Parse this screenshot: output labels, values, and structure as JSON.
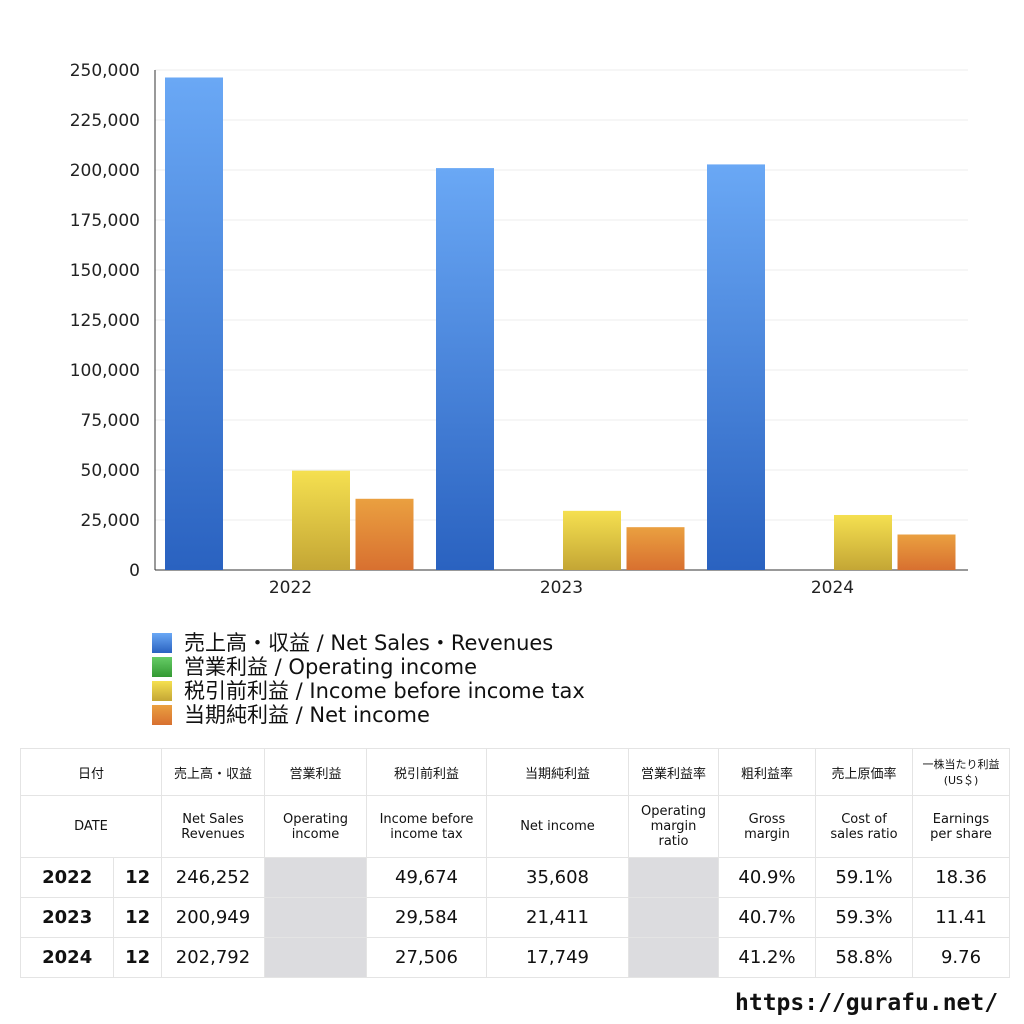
{
  "chart_data": {
    "type": "bar",
    "categories": [
      "2022",
      "2023",
      "2024"
    ],
    "ylim": [
      0,
      250000
    ],
    "yticks": [
      "0",
      "25,000",
      "50,000",
      "75,000",
      "100,000",
      "125,000",
      "150,000",
      "175,000",
      "200,000",
      "225,000",
      "250,000"
    ],
    "series": [
      {
        "name": "売上高・収益 / Net Sales・Revenues",
        "color": "#4a8ee8",
        "values": [
          246252,
          200949,
          202792
        ]
      },
      {
        "name": "営業利益 / Operating income",
        "color": "#4caf3c",
        "values": [
          null,
          null,
          null
        ]
      },
      {
        "name": "税引前利益 / Income before income tax",
        "color": "#e3cf48",
        "values": [
          49674,
          29584,
          27506
        ]
      },
      {
        "name": "当期純利益 / Net income",
        "color": "#e2883a",
        "values": [
          35608,
          21411,
          17749
        ]
      }
    ]
  },
  "table": {
    "header_jp": [
      "日付",
      "売上高・収益",
      "営業利益",
      "税引前利益",
      "当期純利益",
      "営業利益率",
      "粗利益率",
      "売上原価率",
      "一株当たり利益\n(US＄)"
    ],
    "header_en": [
      "DATE",
      "Net Sales\nRevenues",
      "Operating\nincome",
      "Income before\nincome tax",
      "Net income",
      "Operating\nmargin\nratio",
      "Gross\nmargin",
      "Cost of\nsales ratio",
      "Earnings\nper share"
    ],
    "rows": [
      [
        "2022",
        "12",
        "246,252",
        "",
        "49,674",
        "35,608",
        "",
        "40.9%",
        "59.1%",
        "18.36"
      ],
      [
        "2023",
        "12",
        "200,949",
        "",
        "29,584",
        "21,411",
        "",
        "40.7%",
        "59.3%",
        "11.41"
      ],
      [
        "2024",
        "12",
        "202,792",
        "",
        "27,506",
        "17,749",
        "",
        "41.2%",
        "58.8%",
        "9.76"
      ]
    ]
  },
  "footer_url": "https://gurafu.net/"
}
